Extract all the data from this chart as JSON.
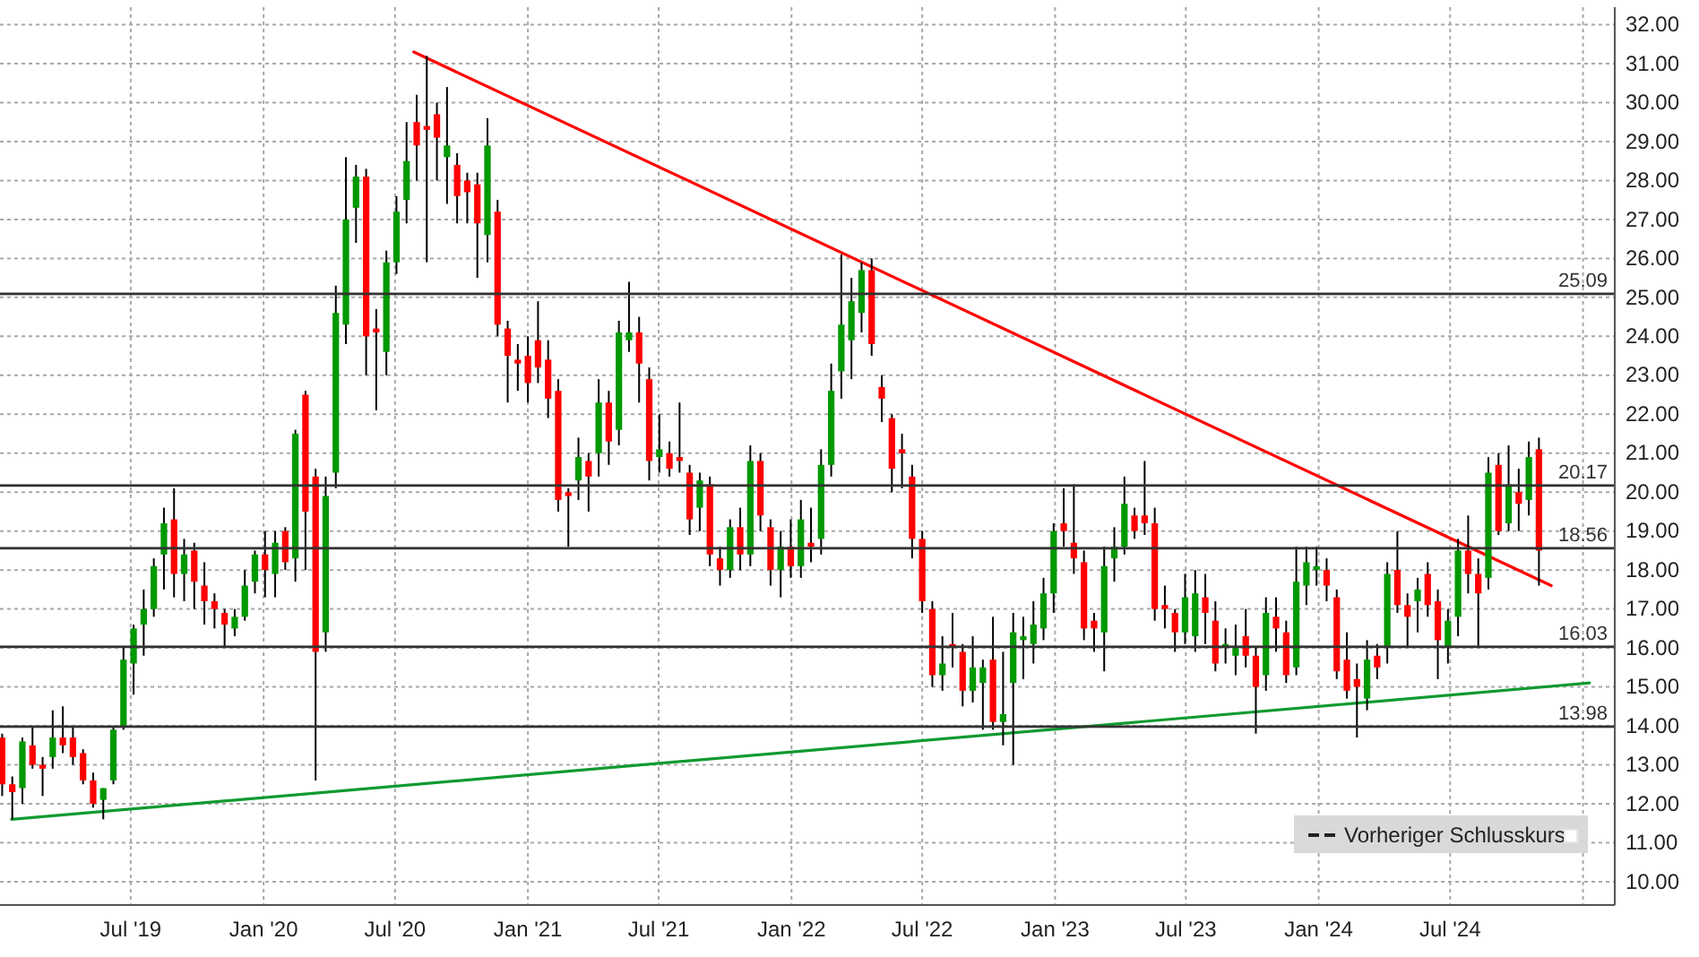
{
  "chart_data": {
    "type": "candlestick",
    "x": [
      "2019-01-04",
      "2019-01-18",
      "2019-02-01",
      "2019-02-15",
      "2019-03-01",
      "2019-03-15",
      "2019-03-29",
      "2019-04-12",
      "2019-04-26",
      "2019-05-10",
      "2019-05-24",
      "2019-06-07",
      "2019-06-21",
      "2019-07-05",
      "2019-07-19",
      "2019-08-02",
      "2019-08-16",
      "2019-08-30",
      "2019-09-13",
      "2019-09-27",
      "2019-10-11",
      "2019-10-25",
      "2019-11-08",
      "2019-11-22",
      "2019-12-06",
      "2019-12-20",
      "2020-01-03",
      "2020-01-17",
      "2020-01-31",
      "2020-02-14",
      "2020-02-28",
      "2020-03-13",
      "2020-03-27",
      "2020-04-10",
      "2020-04-24",
      "2020-05-08",
      "2020-05-22",
      "2020-06-05",
      "2020-06-19",
      "2020-07-03",
      "2020-07-17",
      "2020-07-31",
      "2020-08-14",
      "2020-08-28",
      "2020-09-11",
      "2020-09-25",
      "2020-10-09",
      "2020-10-23",
      "2020-11-06",
      "2020-11-20",
      "2020-12-04",
      "2020-12-18",
      "2021-01-01",
      "2021-01-15",
      "2021-01-29",
      "2021-02-12",
      "2021-02-26",
      "2021-03-12",
      "2021-03-26",
      "2021-04-09",
      "2021-04-23",
      "2021-05-07",
      "2021-05-21",
      "2021-06-04",
      "2021-06-18",
      "2021-07-02",
      "2021-07-16",
      "2021-07-30",
      "2021-08-13",
      "2021-08-27",
      "2021-09-10",
      "2021-09-24",
      "2021-10-08",
      "2021-10-22",
      "2021-11-05",
      "2021-11-19",
      "2021-12-03",
      "2021-12-17",
      "2021-12-31",
      "2022-01-14",
      "2022-01-28",
      "2022-02-11",
      "2022-02-25",
      "2022-03-11",
      "2022-03-25",
      "2022-04-08",
      "2022-04-22",
      "2022-05-06",
      "2022-05-20",
      "2022-06-03",
      "2022-06-17",
      "2022-07-01",
      "2022-07-15",
      "2022-07-29",
      "2022-08-12",
      "2022-08-26",
      "2022-09-09",
      "2022-09-23",
      "2022-10-07",
      "2022-10-21",
      "2022-11-04",
      "2022-11-18",
      "2022-12-02",
      "2022-12-16",
      "2022-12-30",
      "2023-01-13",
      "2023-01-27",
      "2023-02-10",
      "2023-02-24",
      "2023-03-10",
      "2023-03-24",
      "2023-04-07",
      "2023-04-21",
      "2023-05-05",
      "2023-05-19",
      "2023-06-02",
      "2023-06-16",
      "2023-06-30",
      "2023-07-14",
      "2023-07-28",
      "2023-08-11",
      "2023-08-25",
      "2023-09-08",
      "2023-09-22",
      "2023-10-06",
      "2023-10-20",
      "2023-11-03",
      "2023-11-17",
      "2023-12-01",
      "2023-12-15",
      "2023-12-29",
      "2024-01-12",
      "2024-01-26",
      "2024-02-09",
      "2024-02-23",
      "2024-03-08",
      "2024-03-22",
      "2024-04-05",
      "2024-04-19",
      "2024-05-03",
      "2024-05-17",
      "2024-05-31",
      "2024-06-14",
      "2024-06-28",
      "2024-07-12",
      "2024-07-26",
      "2024-08-09",
      "2024-08-23",
      "2024-09-06",
      "2024-09-20",
      "2024-10-04",
      "2024-10-18",
      "2024-11-01"
    ],
    "ohlc": [
      [
        13.7,
        13.8,
        12.2,
        12.5
      ],
      [
        12.5,
        12.7,
        11.6,
        12.3
      ],
      [
        12.4,
        13.7,
        12.0,
        13.6
      ],
      [
        13.5,
        14.0,
        12.9,
        13.0
      ],
      [
        13.0,
        13.2,
        12.2,
        12.9
      ],
      [
        13.2,
        14.4,
        12.9,
        13.7
      ],
      [
        13.7,
        14.5,
        13.3,
        13.5
      ],
      [
        13.7,
        14.0,
        13.0,
        13.2
      ],
      [
        13.3,
        13.4,
        12.5,
        12.6
      ],
      [
        12.6,
        12.8,
        11.9,
        12.0
      ],
      [
        12.1,
        12.4,
        11.6,
        12.4
      ],
      [
        12.6,
        14.0,
        12.5,
        13.9
      ],
      [
        14.0,
        16.0,
        13.9,
        15.7
      ],
      [
        15.6,
        16.6,
        14.8,
        16.5
      ],
      [
        16.6,
        17.5,
        15.8,
        17.0
      ],
      [
        17.0,
        18.3,
        16.8,
        18.1
      ],
      [
        18.4,
        19.6,
        17.5,
        19.2
      ],
      [
        19.3,
        20.1,
        17.3,
        17.9
      ],
      [
        17.9,
        18.8,
        17.2,
        18.4
      ],
      [
        18.5,
        18.7,
        17.0,
        17.7
      ],
      [
        17.6,
        18.2,
        16.6,
        17.2
      ],
      [
        17.2,
        17.4,
        16.5,
        17.0
      ],
      [
        16.9,
        17.0,
        16.0,
        16.6
      ],
      [
        16.5,
        17.0,
        16.3,
        16.8
      ],
      [
        16.8,
        18.0,
        16.7,
        17.6
      ],
      [
        17.7,
        18.5,
        17.4,
        18.4
      ],
      [
        18.4,
        19.0,
        17.3,
        18.0
      ],
      [
        17.9,
        19.0,
        17.3,
        18.7
      ],
      [
        19.0,
        19.1,
        18.0,
        18.2
      ],
      [
        18.3,
        21.6,
        17.7,
        21.5
      ],
      [
        22.5,
        22.6,
        18.0,
        19.5
      ],
      [
        20.4,
        20.6,
        12.6,
        15.9
      ],
      [
        16.4,
        20.4,
        15.9,
        19.9
      ],
      [
        20.5,
        25.3,
        20.1,
        24.6
      ],
      [
        24.3,
        28.6,
        23.8,
        27.0
      ],
      [
        27.3,
        28.4,
        26.4,
        28.1
      ],
      [
        28.1,
        28.3,
        23.0,
        24.0
      ],
      [
        24.2,
        24.7,
        22.1,
        24.1
      ],
      [
        23.6,
        26.2,
        23.0,
        25.9
      ],
      [
        25.9,
        27.6,
        25.6,
        27.2
      ],
      [
        27.5,
        29.5,
        26.9,
        28.5
      ],
      [
        29.5,
        30.2,
        28.0,
        28.9
      ],
      [
        29.4,
        31.2,
        25.9,
        29.3
      ],
      [
        29.7,
        30.0,
        28.0,
        29.1
      ],
      [
        28.6,
        30.4,
        27.4,
        28.9
      ],
      [
        28.4,
        28.7,
        26.9,
        27.6
      ],
      [
        28.0,
        28.2,
        26.9,
        27.7
      ],
      [
        27.9,
        28.2,
        25.5,
        26.9
      ],
      [
        26.6,
        29.6,
        25.9,
        28.9
      ],
      [
        27.2,
        27.5,
        24.0,
        24.3
      ],
      [
        24.2,
        24.4,
        22.3,
        23.5
      ],
      [
        23.4,
        23.8,
        22.6,
        23.3
      ],
      [
        23.5,
        24.0,
        22.3,
        22.8
      ],
      [
        23.9,
        24.9,
        22.8,
        23.2
      ],
      [
        23.4,
        23.9,
        21.9,
        22.4
      ],
      [
        22.6,
        22.9,
        19.5,
        19.8
      ],
      [
        20.0,
        20.1,
        18.6,
        19.9
      ],
      [
        20.3,
        21.4,
        19.8,
        20.9
      ],
      [
        20.8,
        21.0,
        19.5,
        20.4
      ],
      [
        21.0,
        22.9,
        20.4,
        22.3
      ],
      [
        22.3,
        22.6,
        20.7,
        21.3
      ],
      [
        21.6,
        24.4,
        21.2,
        24.1
      ],
      [
        23.9,
        25.4,
        23.6,
        24.1
      ],
      [
        24.1,
        24.5,
        22.3,
        23.3
      ],
      [
        22.9,
        23.2,
        20.3,
        20.8
      ],
      [
        20.9,
        22.0,
        20.5,
        21.1
      ],
      [
        21.0,
        21.3,
        20.4,
        20.6
      ],
      [
        20.9,
        22.3,
        20.5,
        20.8
      ],
      [
        20.5,
        20.7,
        18.9,
        19.3
      ],
      [
        19.6,
        20.5,
        19.0,
        20.3
      ],
      [
        20.2,
        20.4,
        18.1,
        18.4
      ],
      [
        18.3,
        18.6,
        17.6,
        18.0
      ],
      [
        18.0,
        19.3,
        17.8,
        19.1
      ],
      [
        19.1,
        19.6,
        18.0,
        18.4
      ],
      [
        18.4,
        21.2,
        18.1,
        20.8
      ],
      [
        20.8,
        21.0,
        19.0,
        19.4
      ],
      [
        19.1,
        19.3,
        17.6,
        18.0
      ],
      [
        18.0,
        19.0,
        17.3,
        18.6
      ],
      [
        18.6,
        19.3,
        17.8,
        18.1
      ],
      [
        18.1,
        19.8,
        17.8,
        19.3
      ],
      [
        18.7,
        19.6,
        18.2,
        18.6
      ],
      [
        18.8,
        21.1,
        18.4,
        20.7
      ],
      [
        20.7,
        23.3,
        20.4,
        22.6
      ],
      [
        23.1,
        26.1,
        22.4,
        24.3
      ],
      [
        23.9,
        25.5,
        22.9,
        24.9
      ],
      [
        24.6,
        25.9,
        24.1,
        25.7
      ],
      [
        25.7,
        26.0,
        23.5,
        23.8
      ],
      [
        22.7,
        23.0,
        21.8,
        22.4
      ],
      [
        21.9,
        22.0,
        20.0,
        20.6
      ],
      [
        21.1,
        21.5,
        20.1,
        21.0
      ],
      [
        20.4,
        20.7,
        18.3,
        18.8
      ],
      [
        18.8,
        19.0,
        16.9,
        17.2
      ],
      [
        17.0,
        17.2,
        15.0,
        15.3
      ],
      [
        15.3,
        16.3,
        14.9,
        15.6
      ],
      [
        16.1,
        16.9,
        15.5,
        16.0
      ],
      [
        15.9,
        16.1,
        14.5,
        14.9
      ],
      [
        14.9,
        16.3,
        14.6,
        15.5
      ],
      [
        15.1,
        15.7,
        13.9,
        15.5
      ],
      [
        15.7,
        16.8,
        13.9,
        14.1
      ],
      [
        14.1,
        15.9,
        13.5,
        14.3
      ],
      [
        15.1,
        16.9,
        13.0,
        16.4
      ],
      [
        16.2,
        16.8,
        15.2,
        16.3
      ],
      [
        16.1,
        17.2,
        15.6,
        16.6
      ],
      [
        16.5,
        17.8,
        16.2,
        17.4
      ],
      [
        17.4,
        19.2,
        16.9,
        19.0
      ],
      [
        19.2,
        20.1,
        18.6,
        19.0
      ],
      [
        18.7,
        20.2,
        17.9,
        18.3
      ],
      [
        18.2,
        18.5,
        16.2,
        16.5
      ],
      [
        16.7,
        16.9,
        15.9,
        16.5
      ],
      [
        16.4,
        18.6,
        15.4,
        18.1
      ],
      [
        18.3,
        19.1,
        17.7,
        18.6
      ],
      [
        18.6,
        20.4,
        18.4,
        19.7
      ],
      [
        19.4,
        19.6,
        18.8,
        19.0
      ],
      [
        19.4,
        20.8,
        18.9,
        19.2
      ],
      [
        19.2,
        19.6,
        16.7,
        17.0
      ],
      [
        17.1,
        17.6,
        16.5,
        17.0
      ],
      [
        16.9,
        17.0,
        15.9,
        16.4
      ],
      [
        16.4,
        17.9,
        16.1,
        17.3
      ],
      [
        16.3,
        18.0,
        15.9,
        17.4
      ],
      [
        17.3,
        17.9,
        16.1,
        16.9
      ],
      [
        16.7,
        17.2,
        15.4,
        15.6
      ],
      [
        16.0,
        16.5,
        15.6,
        16.1
      ],
      [
        15.8,
        16.6,
        15.3,
        16.0
      ],
      [
        16.3,
        17.0,
        15.5,
        15.8
      ],
      [
        15.8,
        16.0,
        13.8,
        15.0
      ],
      [
        15.3,
        17.3,
        14.9,
        16.9
      ],
      [
        16.8,
        17.3,
        15.9,
        16.5
      ],
      [
        16.4,
        16.7,
        15.1,
        15.3
      ],
      [
        15.5,
        18.6,
        15.3,
        17.7
      ],
      [
        17.6,
        18.6,
        17.1,
        18.2
      ],
      [
        18.0,
        18.6,
        17.6,
        18.1
      ],
      [
        18.0,
        18.3,
        17.2,
        17.6
      ],
      [
        17.3,
        17.5,
        15.2,
        15.4
      ],
      [
        15.7,
        16.4,
        14.7,
        14.9
      ],
      [
        15.2,
        15.6,
        13.7,
        15.0
      ],
      [
        14.7,
        16.2,
        14.4,
        15.7
      ],
      [
        15.8,
        16.1,
        15.2,
        15.5
      ],
      [
        16.0,
        18.2,
        15.6,
        17.9
      ],
      [
        18.0,
        19.0,
        16.9,
        17.1
      ],
      [
        17.1,
        17.4,
        16.0,
        16.8
      ],
      [
        17.2,
        17.8,
        16.4,
        17.5
      ],
      [
        17.9,
        18.2,
        16.8,
        17.1
      ],
      [
        17.2,
        17.5,
        15.2,
        16.2
      ],
      [
        16.0,
        17.0,
        15.6,
        16.7
      ],
      [
        16.8,
        18.8,
        16.3,
        18.5
      ],
      [
        18.5,
        19.4,
        17.4,
        17.9
      ],
      [
        17.9,
        18.3,
        16.0,
        17.4
      ],
      [
        17.8,
        20.9,
        17.5,
        20.5
      ],
      [
        20.7,
        21.0,
        18.9,
        19.0
      ],
      [
        19.2,
        21.2,
        19.0,
        20.2
      ],
      [
        20.0,
        20.6,
        19.0,
        19.7
      ],
      [
        19.8,
        21.3,
        19.4,
        20.9
      ],
      [
        21.1,
        21.4,
        17.6,
        18.5
      ]
    ],
    "colors": [
      "#ff0000",
      "#ff0000",
      "#009900",
      "#ff0000",
      "#ff0000",
      "#009900",
      "#ff0000",
      "#ff0000",
      "#ff0000",
      "#ff0000",
      "#009900",
      "#009900",
      "#009900",
      "#009900",
      "#009900",
      "#009900",
      "#009900",
      "#ff0000",
      "#009900",
      "#ff0000",
      "#ff0000",
      "#ff0000",
      "#ff0000",
      "#009900",
      "#009900",
      "#009900",
      "#ff0000",
      "#009900",
      "#ff0000",
      "#009900",
      "#ff0000",
      "#ff0000",
      "#009900",
      "#009900",
      "#009900",
      "#009900",
      "#ff0000",
      "#ff0000",
      "#009900",
      "#009900",
      "#009900",
      "#ff0000",
      "#ff0000",
      "#ff0000",
      "#009900",
      "#ff0000",
      "#ff0000",
      "#ff0000",
      "#009900",
      "#ff0000",
      "#ff0000",
      "#ff0000",
      "#ff0000",
      "#ff0000",
      "#ff0000",
      "#ff0000",
      "#ff0000",
      "#009900",
      "#ff0000",
      "#009900",
      "#ff0000",
      "#009900",
      "#009900",
      "#ff0000",
      "#ff0000",
      "#009900",
      "#ff0000",
      "#ff0000",
      "#ff0000",
      "#009900",
      "#ff0000",
      "#ff0000",
      "#009900",
      "#ff0000",
      "#009900",
      "#ff0000",
      "#ff0000",
      "#009900",
      "#ff0000",
      "#009900",
      "#ff0000",
      "#009900",
      "#009900",
      "#009900",
      "#009900",
      "#009900",
      "#ff0000",
      "#ff0000",
      "#ff0000",
      "#ff0000",
      "#ff0000",
      "#ff0000",
      "#ff0000",
      "#009900",
      "#ff0000",
      "#ff0000",
      "#009900",
      "#009900",
      "#ff0000",
      "#009900",
      "#009900",
      "#009900",
      "#009900",
      "#009900",
      "#009900",
      "#ff0000",
      "#ff0000",
      "#ff0000",
      "#ff0000",
      "#009900",
      "#009900",
      "#009900",
      "#ff0000",
      "#ff0000",
      "#ff0000",
      "#ff0000",
      "#ff0000",
      "#009900",
      "#009900",
      "#ff0000",
      "#ff0000",
      "#009900",
      "#009900",
      "#ff0000",
      "#ff0000",
      "#009900",
      "#ff0000",
      "#ff0000",
      "#009900",
      "#009900",
      "#009900",
      "#ff0000",
      "#ff0000",
      "#ff0000",
      "#ff0000",
      "#009900",
      "#ff0000",
      "#009900",
      "#ff0000",
      "#ff0000",
      "#009900",
      "#ff0000",
      "#ff0000",
      "#009900",
      "#009900",
      "#ff0000",
      "#ff0000",
      "#009900",
      "#ff0000",
      "#009900",
      "#ff0000",
      "#009900",
      "#ff0000"
    ],
    "series": [
      {
        "type": "line",
        "color": "#ff0000",
        "x": [
          "2020-07-27",
          "2024-11-18"
        ],
        "values": [
          31.3,
          17.6
        ]
      },
      {
        "type": "line",
        "color": "#109a30",
        "x": [
          "2019-01-17",
          "2025-01-10"
        ],
        "values": [
          11.6,
          15.1
        ]
      }
    ],
    "xlim": [
      "2019-01-01",
      "2025-02-14"
    ],
    "xticks": [
      {
        "value": "2019-07-01",
        "label": "Jul '19"
      },
      {
        "value": "2020-01-01",
        "label": "Jan '20"
      },
      {
        "value": "2020-07-01",
        "label": "Jul '20"
      },
      {
        "value": "2021-01-01",
        "label": "Jan '21"
      },
      {
        "value": "2021-07-01",
        "label": "Jul '21"
      },
      {
        "value": "2022-01-01",
        "label": "Jan '22"
      },
      {
        "value": "2022-07-01",
        "label": "Jul '22"
      },
      {
        "value": "2023-01-01",
        "label": "Jan '23"
      },
      {
        "value": "2023-07-01",
        "label": "Jul '23"
      },
      {
        "value": "2024-01-01",
        "label": "Jan '24"
      },
      {
        "value": "2024-07-01",
        "label": "Jul '24"
      },
      {
        "value": "2025-01-01",
        "label": null
      }
    ],
    "ylim": [
      9.4,
      32.45
    ],
    "yticks": [
      {
        "value": 10,
        "label": "10.00"
      },
      {
        "value": 11,
        "label": "11.00"
      },
      {
        "value": 12,
        "label": "12.00"
      },
      {
        "value": 13,
        "label": "13.00"
      },
      {
        "value": 14,
        "label": "14.00"
      },
      {
        "value": 15,
        "label": "15.00"
      },
      {
        "value": 16,
        "label": "16.00"
      },
      {
        "value": 17,
        "label": "17.00"
      },
      {
        "value": 18,
        "label": "18.00"
      },
      {
        "value": 19,
        "label": "19.00"
      },
      {
        "value": 20,
        "label": "20.00"
      },
      {
        "value": 21,
        "label": "21.00"
      },
      {
        "value": 22,
        "label": "22.00"
      },
      {
        "value": 23,
        "label": "23.00"
      },
      {
        "value": 24,
        "label": "24.00"
      },
      {
        "value": 25,
        "label": "25.00"
      },
      {
        "value": 26,
        "label": "26.00"
      },
      {
        "value": 27,
        "label": "27.00"
      },
      {
        "value": 28,
        "label": "28.00"
      },
      {
        "value": 29,
        "label": "29.00"
      },
      {
        "value": 30,
        "label": "30.00"
      },
      {
        "value": 31,
        "label": "31.00"
      },
      {
        "value": 32,
        "label": "32.00"
      }
    ],
    "ref_lines": [
      {
        "axis": "y",
        "value": 25.09,
        "label": "25.09",
        "color": "#333333"
      },
      {
        "axis": "y",
        "value": 20.17,
        "label": "20.17",
        "color": "#333333"
      },
      {
        "axis": "y",
        "value": 18.56,
        "label": "18.56",
        "color": "#333333"
      },
      {
        "axis": "y",
        "value": 16.03,
        "label": "16.03",
        "color": "#333333"
      },
      {
        "axis": "y",
        "value": 13.98,
        "label": "13.98",
        "color": "#333333"
      }
    ],
    "annotations": [
      "Vorheriger Schlusskurs"
    ],
    "grid": true
  }
}
